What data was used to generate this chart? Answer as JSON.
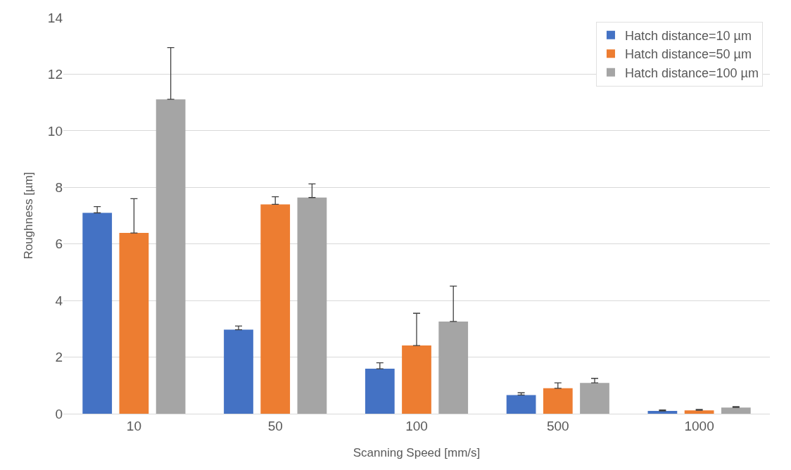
{
  "chart_data": {
    "type": "bar",
    "xlabel": "Scanning Speed [mm/s]",
    "ylabel": "Roughness [µm]",
    "categories": [
      "10",
      "50",
      "100",
      "500",
      "1000"
    ],
    "series": [
      {
        "name": "Hatch distance=10 µm",
        "color": "#4472c4",
        "values": [
          7.1,
          2.97,
          1.59,
          0.66,
          0.1
        ],
        "errors": [
          [
            7.1,
            7.32
          ],
          [
            2.97,
            3.1
          ],
          [
            1.59,
            1.8
          ],
          [
            0.66,
            0.74
          ],
          [
            0.1,
            0.13
          ]
        ]
      },
      {
        "name": "Hatch distance=50 µm",
        "color": "#ed7d31",
        "values": [
          6.39,
          7.4,
          2.41,
          0.9,
          0.12
        ],
        "errors": [
          [
            6.39,
            7.6
          ],
          [
            7.4,
            7.67
          ],
          [
            2.41,
            3.55
          ],
          [
            0.9,
            1.09
          ],
          [
            0.12,
            0.15
          ]
        ]
      },
      {
        "name": "Hatch distance=100 µm",
        "color": "#a5a5a5",
        "values": [
          11.11,
          7.64,
          3.26,
          1.09,
          0.22
        ],
        "errors": [
          [
            11.11,
            12.94
          ],
          [
            7.64,
            8.12
          ],
          [
            3.26,
            4.51
          ],
          [
            1.09,
            1.25
          ],
          [
            0.22,
            0.25
          ]
        ]
      }
    ],
    "ylim": [
      0,
      14
    ],
    "yticks": [
      0,
      2,
      4,
      6,
      8,
      10,
      12,
      14
    ],
    "grid": "y",
    "legend": "top right"
  }
}
